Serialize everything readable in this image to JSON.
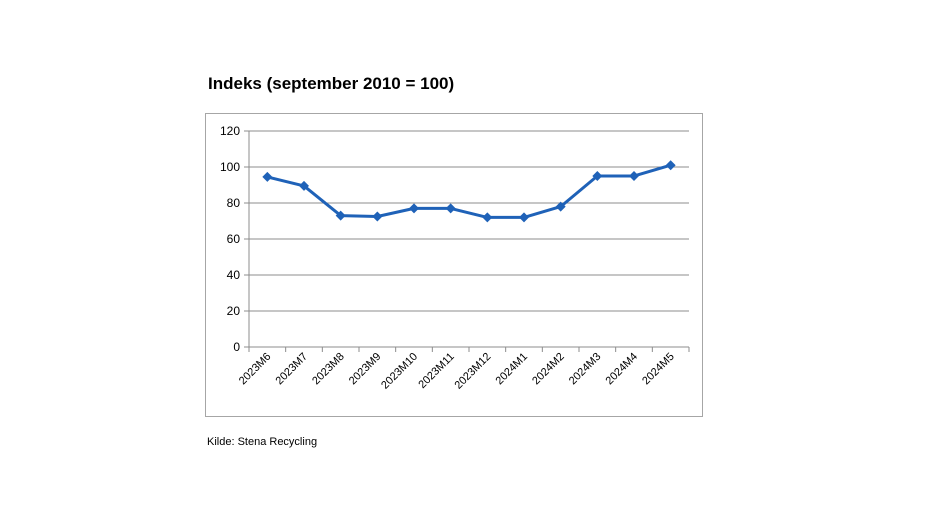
{
  "title": "Indeks (september 2010 = 100)",
  "source": "Kilde: Stena Recycling",
  "chart_data": {
    "type": "line",
    "title": "Indeks (september 2010 = 100)",
    "xlabel": "",
    "ylabel": "",
    "categories": [
      "2023M6",
      "2023M7",
      "2023M8",
      "2023M9",
      "2023M10",
      "2023M11",
      "2023M12",
      "2024M1",
      "2024M2",
      "2024M3",
      "2024M4",
      "2024M5"
    ],
    "series": [
      {
        "values": [
          94.5,
          89.5,
          73,
          72.5,
          77,
          77,
          72,
          72,
          78,
          95,
          95,
          101
        ]
      }
    ],
    "ylim": [
      0,
      120
    ],
    "yticks": [
      0,
      20,
      40,
      60,
      80,
      100,
      120
    ],
    "grid": true,
    "legend": "none",
    "line_color": "#1f62b8"
  }
}
